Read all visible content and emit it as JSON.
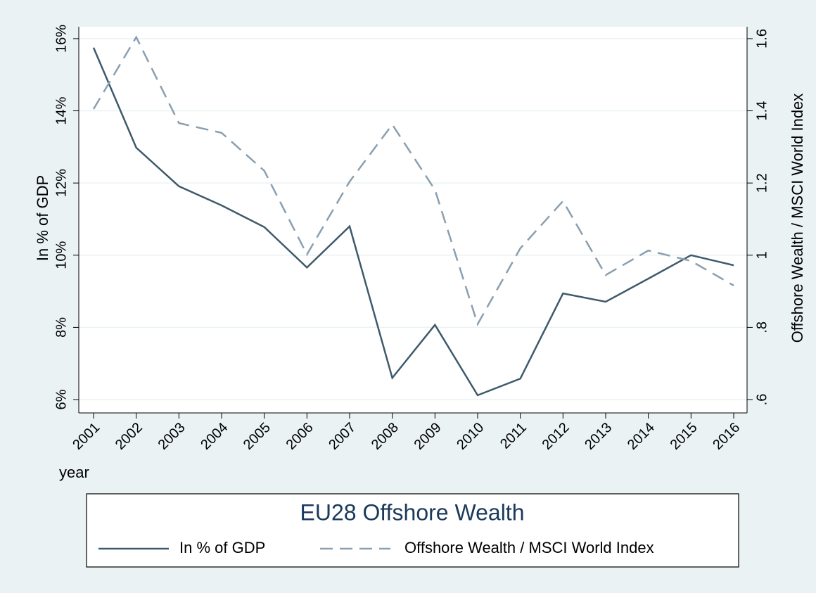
{
  "chart_data": {
    "type": "line",
    "title": "EU28 Offshore Wealth",
    "x_label": "year",
    "y_label": "In % of GDP",
    "y2_label": "Offshore Wealth / MSCI World Index",
    "categories": [
      "2001",
      "2002",
      "2003",
      "2004",
      "2005",
      "2006",
      "2007",
      "2008",
      "2009",
      "2010",
      "2011",
      "2012",
      "2013",
      "2014",
      "2015",
      "2016"
    ],
    "series": [
      {
        "name": "In % of GDP",
        "color": "#3e5a6b",
        "dash": false,
        "values": [
          15.75,
          12.98,
          11.91,
          11.38,
          10.78,
          9.66,
          10.8,
          6.6,
          8.07,
          6.12,
          6.58,
          8.94,
          8.71,
          9.35,
          10.0,
          9.72
        ]
      },
      {
        "name": "Offshore Wealth / MSCI World Index",
        "color": "#8a9fb0",
        "dash": true,
        "axis": "y2",
        "values": [
          1.405,
          1.604,
          1.366,
          1.339,
          1.234,
          1.002,
          1.204,
          1.362,
          1.181,
          0.809,
          1.019,
          1.15,
          0.945,
          1.013,
          0.984,
          0.916
        ]
      }
    ],
    "ylim": [
      5.63,
      16.33
    ],
    "yticks": [
      {
        "value": 6,
        "label": "6%"
      },
      {
        "value": 8,
        "label": "8%"
      },
      {
        "value": 10,
        "label": "10%"
      },
      {
        "value": 12,
        "label": "12%"
      },
      {
        "value": 14,
        "label": "14%"
      },
      {
        "value": 16,
        "label": "16%"
      }
    ],
    "y2lim": [
      0.563,
      1.633
    ],
    "y2ticks": [
      {
        "value": 0.6,
        "label": ".6"
      },
      {
        "value": 0.8,
        "label": ".8"
      },
      1,
      1.2,
      1.4,
      1.6
    ],
    "grid": true
  }
}
